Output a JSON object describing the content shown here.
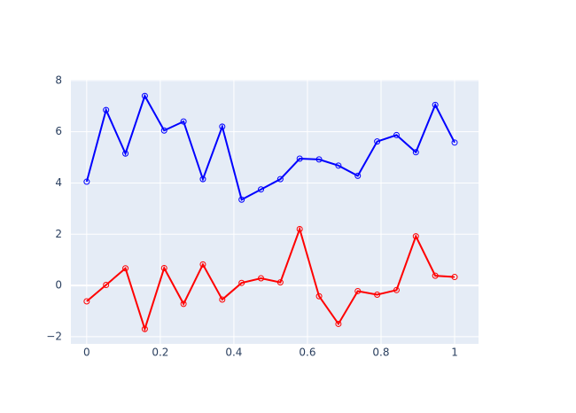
{
  "chart_data": {
    "type": "line",
    "x": [
      0,
      0.0526,
      0.1053,
      0.1579,
      0.2105,
      0.2632,
      0.3158,
      0.3684,
      0.4211,
      0.4737,
      0.5263,
      0.5789,
      0.6316,
      0.6842,
      0.7368,
      0.7895,
      0.8421,
      0.8947,
      0.9474,
      1
    ],
    "series": [
      {
        "color": "#0000ff",
        "values": [
          4.05,
          6.85,
          5.15,
          7.4,
          6.05,
          6.4,
          4.15,
          6.2,
          3.35,
          3.75,
          4.15,
          4.95,
          4.92,
          4.68,
          4.28,
          5.62,
          5.87,
          5.2,
          7.05,
          5.58
        ]
      },
      {
        "color": "#ff0000",
        "values": [
          -0.62,
          0.02,
          0.67,
          -1.7,
          0.68,
          -0.72,
          0.82,
          -0.55,
          0.1,
          0.28,
          0.12,
          2.2,
          -0.42,
          -1.5,
          -0.22,
          -0.36,
          -0.18,
          1.92,
          0.38,
          0.33
        ]
      }
    ],
    "xlim": [
      -0.043,
      1.065
    ],
    "ylim": [
      -2.28,
      8.03
    ],
    "xticks": [
      0,
      0.2,
      0.4,
      0.6,
      0.8,
      1
    ],
    "yticks": [
      {
        "value": -2,
        "label": "−2"
      },
      0,
      2,
      4,
      6,
      8
    ],
    "grid": true
  }
}
